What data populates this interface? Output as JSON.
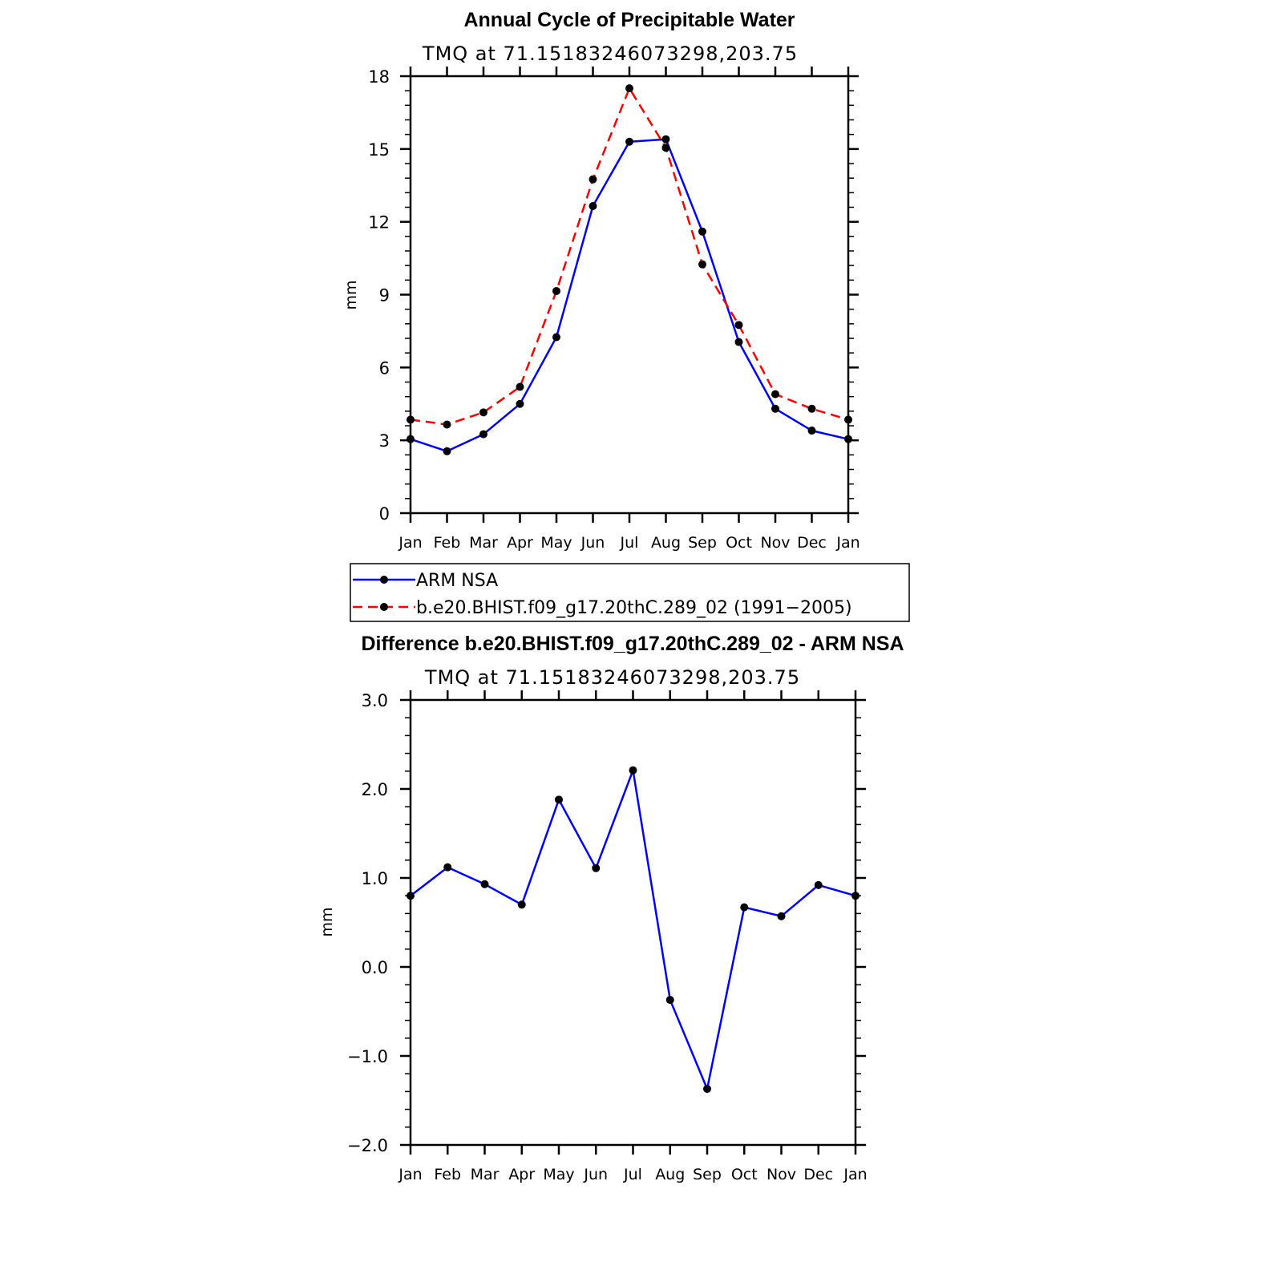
{
  "chart_data": [
    {
      "type": "line",
      "title": "Annual Cycle of Precipitable Water",
      "subtitle": "TMQ at 71.15183246073298,203.75",
      "ylabel": "mm",
      "xlabel": "",
      "ylim": [
        0,
        18
      ],
      "yticks": [
        0,
        3,
        6,
        9,
        12,
        15,
        18
      ],
      "ytick_labels": [
        "0",
        "3",
        "6",
        "9",
        "12",
        "15",
        "18"
      ],
      "categories": [
        "Jan",
        "Feb",
        "Mar",
        "Apr",
        "May",
        "Jun",
        "Jul",
        "Aug",
        "Sep",
        "Oct",
        "Nov",
        "Dec",
        "Jan"
      ],
      "series": [
        {
          "name": "ARM NSA",
          "color": "#0000ff",
          "dash": "solid",
          "values": [
            3.05,
            2.55,
            3.25,
            4.5,
            7.25,
            12.65,
            15.3,
            15.4,
            11.6,
            7.05,
            4.3,
            3.4,
            3.05
          ]
        },
        {
          "name": "b.e20.BHIST.f09_g17.20thC.289_02 (1991−2005)",
          "color": "#ff0000",
          "dash": "dashed",
          "values": [
            3.85,
            3.65,
            4.15,
            5.2,
            9.15,
            13.75,
            17.5,
            15.05,
            10.25,
            7.75,
            4.9,
            4.3,
            3.85
          ]
        }
      ],
      "legend": "below"
    },
    {
      "type": "line",
      "title": "Difference b.e20.BHIST.f09_g17.20thC.289_02 - ARM NSA",
      "subtitle": "TMQ at 71.15183246073298,203.75",
      "ylabel": "mm",
      "xlabel": "",
      "ylim": [
        -2.0,
        3.0
      ],
      "yticks": [
        -2.0,
        -1.0,
        0.0,
        1.0,
        2.0,
        3.0
      ],
      "ytick_labels": [
        "−2.0",
        "−1.0",
        "0.0",
        "1.0",
        "2.0",
        "3.0"
      ],
      "categories": [
        "Jan",
        "Feb",
        "Mar",
        "Apr",
        "May",
        "Jun",
        "Jul",
        "Aug",
        "Sep",
        "Oct",
        "Nov",
        "Dec",
        "Jan"
      ],
      "series": [
        {
          "name": "Difference",
          "color": "#0000ff",
          "dash": "solid",
          "values": [
            0.8,
            1.12,
            0.93,
            0.7,
            1.88,
            1.11,
            2.21,
            -0.37,
            -1.37,
            0.67,
            0.57,
            0.92,
            0.8
          ]
        }
      ]
    }
  ]
}
